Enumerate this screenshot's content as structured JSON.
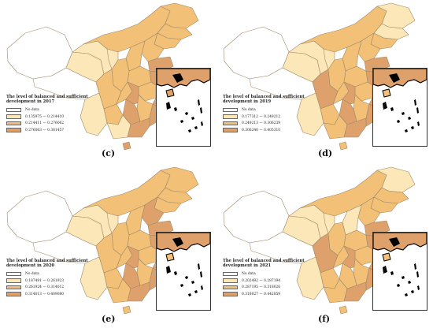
{
  "colors": {
    "no_data": "#ffffff",
    "low": "#fbe7b8",
    "mid": "#f2c076",
    "high": "#dea16c",
    "border": "#a08a6a"
  },
  "panels": [
    {
      "label": "(c)",
      "legend": {
        "title": "The level of balanced and sufficient development in 2017",
        "no_data": "No data",
        "classes": [
          "0.135975 — 0.214410",
          "0.214411 — 0.276062",
          "0.276063 — 0.381457"
        ]
      }
    },
    {
      "label": "(d)",
      "legend": {
        "title": "The level of balanced and sufficient development in 2019",
        "no_data": "No data",
        "classes": [
          "0.177312 — 0.249212",
          "0.249213 — 0.306239",
          "0.306240 — 0.405310"
        ]
      }
    },
    {
      "label": "(e)",
      "legend": {
        "title": "The level of balanced and sufficient development in 2020",
        "no_data": "No data",
        "classes": [
          "0.187491 — 0.261923",
          "0.261924 — 0.314012",
          "0.314013 — 0.409080"
        ]
      }
    },
    {
      "label": "(f)",
      "legend": {
        "title": "The level of balanced and sufficient development in 2021",
        "no_data": "No data",
        "classes": [
          "0.202492 — 0.287194",
          "0.287195 — 0.318026",
          "0.318027 — 0.442859"
        ]
      }
    }
  ]
}
